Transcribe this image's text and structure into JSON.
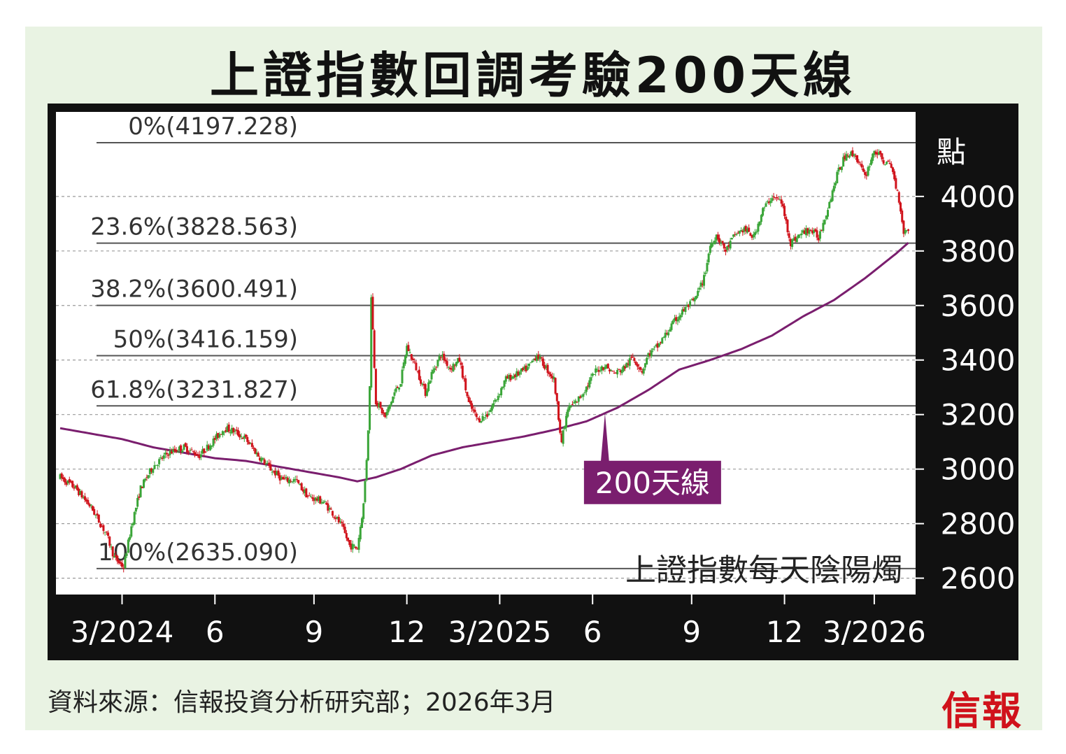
{
  "title": "上證指數回調考驗200天線",
  "source": "資料來源：信報投資分析研究部；2026年3月",
  "logo": "信報",
  "colors": {
    "ma_line": "#7a1e6e",
    "up_candle": "#3aa538",
    "down_candle": "#d0121b",
    "fib_line": "#555555",
    "grid": "#9a9a9a",
    "frame": "#111111"
  },
  "chart_data": {
    "type": "candlestick",
    "title": "上證指數回調考驗200天線",
    "series_label": "上證指數每天陰陽燭",
    "yunit": "點",
    "ylim": [
      2540,
      4310
    ],
    "yticks": [
      2600,
      2800,
      3000,
      3200,
      3400,
      3600,
      3800,
      4000
    ],
    "xticks": [
      {
        "label": "3/2024",
        "month": 2
      },
      {
        "label": "6",
        "month": 5
      },
      {
        "label": "9",
        "month": 8.2
      },
      {
        "label": "12",
        "month": 11.2
      },
      {
        "label": "3/2025",
        "month": 14.2
      },
      {
        "label": "6",
        "month": 17.2
      },
      {
        "label": "9",
        "month": 20.4
      },
      {
        "label": "12",
        "month": 23.4
      },
      {
        "label": "3/2026",
        "month": 26.3
      }
    ],
    "xlim": [
      0,
      27.5
    ],
    "fibonacci": [
      {
        "label": "0%(4197.228)",
        "value": 4197.228
      },
      {
        "label": "23.6%(3828.563)",
        "value": 3828.563
      },
      {
        "label": "38.2%(3600.491)",
        "value": 3600.491
      },
      {
        "label": "50%(3416.159)",
        "value": 3416.159
      },
      {
        "label": "61.8%(3231.827)",
        "value": 3231.827
      },
      {
        "label": "100%(2635.090)",
        "value": 2635.09
      }
    ],
    "price_path": [
      [
        0.0,
        2970
      ],
      [
        0.5,
        2930
      ],
      [
        1.0,
        2860
      ],
      [
        1.5,
        2760
      ],
      [
        1.75,
        2675
      ],
      [
        2.05,
        2640
      ],
      [
        2.3,
        2790
      ],
      [
        2.6,
        2930
      ],
      [
        3.0,
        3010
      ],
      [
        3.5,
        3060
      ],
      [
        4.0,
        3080
      ],
      [
        4.5,
        3050
      ],
      [
        5.0,
        3110
      ],
      [
        5.3,
        3150
      ],
      [
        5.6,
        3140
      ],
      [
        6.0,
        3110
      ],
      [
        6.4,
        3050
      ],
      [
        6.8,
        3000
      ],
      [
        7.2,
        2960
      ],
      [
        7.6,
        2960
      ],
      [
        8.0,
        2900
      ],
      [
        8.5,
        2880
      ],
      [
        8.8,
        2840
      ],
      [
        9.1,
        2790
      ],
      [
        9.35,
        2720
      ],
      [
        9.6,
        2710
      ],
      [
        9.8,
        2870
      ],
      [
        9.93,
        3090
      ],
      [
        10.0,
        3300
      ],
      [
        10.05,
        3640
      ],
      [
        10.2,
        3250
      ],
      [
        10.5,
        3190
      ],
      [
        10.8,
        3280
      ],
      [
        11.0,
        3320
      ],
      [
        11.2,
        3450
      ],
      [
        11.5,
        3370
      ],
      [
        11.8,
        3280
      ],
      [
        12.0,
        3350
      ],
      [
        12.3,
        3420
      ],
      [
        12.6,
        3370
      ],
      [
        12.9,
        3400
      ],
      [
        13.2,
        3240
      ],
      [
        13.5,
        3180
      ],
      [
        13.8,
        3200
      ],
      [
        14.1,
        3260
      ],
      [
        14.4,
        3330
      ],
      [
        14.8,
        3350
      ],
      [
        15.1,
        3370
      ],
      [
        15.4,
        3420
      ],
      [
        15.7,
        3370
      ],
      [
        15.95,
        3330
      ],
      [
        16.2,
        3100
      ],
      [
        16.4,
        3220
      ],
      [
        16.7,
        3250
      ],
      [
        17.0,
        3300
      ],
      [
        17.3,
        3360
      ],
      [
        17.6,
        3380
      ],
      [
        17.9,
        3350
      ],
      [
        18.2,
        3370
      ],
      [
        18.5,
        3410
      ],
      [
        18.8,
        3360
      ],
      [
        19.0,
        3420
      ],
      [
        19.3,
        3450
      ],
      [
        19.6,
        3500
      ],
      [
        19.9,
        3550
      ],
      [
        20.2,
        3590
      ],
      [
        20.5,
        3620
      ],
      [
        20.8,
        3700
      ],
      [
        21.0,
        3820
      ],
      [
        21.2,
        3860
      ],
      [
        21.5,
        3800
      ],
      [
        21.8,
        3860
      ],
      [
        22.1,
        3880
      ],
      [
        22.4,
        3850
      ],
      [
        22.7,
        3950
      ],
      [
        23.0,
        4000
      ],
      [
        23.3,
        3980
      ],
      [
        23.6,
        3830
      ],
      [
        23.9,
        3860
      ],
      [
        24.2,
        3880
      ],
      [
        24.5,
        3850
      ],
      [
        24.8,
        3960
      ],
      [
        25.1,
        4080
      ],
      [
        25.4,
        4160
      ],
      [
        25.7,
        4150
      ],
      [
        26.0,
        4070
      ],
      [
        26.3,
        4170
      ],
      [
        26.6,
        4130
      ],
      [
        26.85,
        4110
      ],
      [
        27.1,
        3990
      ],
      [
        27.25,
        3870
      ],
      [
        27.4,
        3880
      ]
    ],
    "ma200_path": [
      [
        0.0,
        3150
      ],
      [
        1.0,
        3130
      ],
      [
        2.0,
        3110
      ],
      [
        3.0,
        3080
      ],
      [
        4.0,
        3060
      ],
      [
        5.0,
        3040
      ],
      [
        6.0,
        3030
      ],
      [
        7.0,
        3010
      ],
      [
        8.0,
        2990
      ],
      [
        9.0,
        2970
      ],
      [
        9.6,
        2955
      ],
      [
        10.2,
        2970
      ],
      [
        11.0,
        3000
      ],
      [
        12.0,
        3050
      ],
      [
        13.0,
        3080
      ],
      [
        14.0,
        3100
      ],
      [
        15.0,
        3120
      ],
      [
        16.0,
        3145
      ],
      [
        17.0,
        3175
      ],
      [
        18.0,
        3225
      ],
      [
        19.0,
        3290
      ],
      [
        20.0,
        3365
      ],
      [
        21.0,
        3400
      ],
      [
        22.0,
        3440
      ],
      [
        23.0,
        3490
      ],
      [
        24.0,
        3560
      ],
      [
        25.0,
        3620
      ],
      [
        26.0,
        3700
      ],
      [
        27.0,
        3790
      ],
      [
        27.4,
        3830
      ]
    ],
    "annotation": {
      "label": "200天線",
      "month": 17.6,
      "value": 3170
    }
  }
}
